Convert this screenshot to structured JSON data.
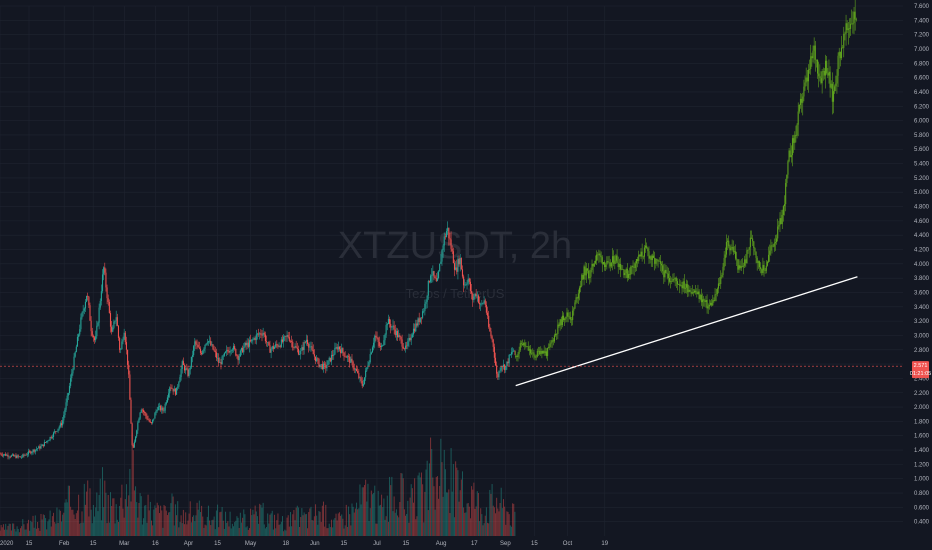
{
  "symbol": "XTZUSDT, 2h",
  "symbol_desc": "Tezos / TetherUS",
  "colors": {
    "background": "#131722",
    "grid": "#1f2430",
    "up": "#26a69a",
    "down": "#ef5350",
    "projection": "#5fa31e",
    "trendline": "#ffffff",
    "current_price": "#ef5350"
  },
  "chart_data": {
    "type": "candlestick",
    "title": "XTZUSDT, 2h",
    "subtitle": "Tezos / TetherUS",
    "y_axis_position": "right",
    "ylim": [
      0.2,
      7.6
    ],
    "y_ticks": [
      "0.400",
      "0.600",
      "0.800",
      "1.000",
      "1.200",
      "1.400",
      "1.600",
      "1.800",
      "2.000",
      "2.200",
      "2.400",
      "2.600",
      "2.800",
      "3.000",
      "3.200",
      "3.400",
      "3.600",
      "3.800",
      "4.000",
      "4.200",
      "4.400",
      "4.600",
      "4.800",
      "5.000",
      "5.200",
      "5.400",
      "5.600",
      "5.800",
      "6.000",
      "6.200",
      "6.400",
      "6.600",
      "6.800",
      "7.000",
      "7.200",
      "7.400",
      "7.600"
    ],
    "x_ticks": [
      "2020",
      "15",
      "Feb",
      "15",
      "Mar",
      "16",
      "Apr",
      "15",
      "May",
      "18",
      "Jun",
      "15",
      "Jul",
      "15",
      "Aug",
      "17",
      "Sep",
      "15",
      "Oct",
      "19"
    ],
    "x_tick_days": [
      0,
      14,
      31,
      45,
      60,
      75,
      91,
      105,
      121,
      138,
      152,
      166,
      182,
      196,
      213,
      229,
      244,
      258,
      274,
      292
    ],
    "current_price": {
      "value": 2.571,
      "label": "2.571",
      "countdown": "01:21:05"
    },
    "price_series": {
      "name": "",
      "days": [
        0,
        5,
        10,
        15,
        20,
        25,
        30,
        33,
        36,
        39,
        42,
        44,
        46,
        48,
        50,
        52,
        54,
        56,
        58,
        60,
        62,
        64,
        66,
        68,
        70,
        73,
        76,
        79,
        82,
        85,
        88,
        91,
        94,
        97,
        100,
        103,
        106,
        109,
        112,
        115,
        118,
        121,
        124,
        127,
        130,
        133,
        136,
        139,
        142,
        145,
        148,
        151,
        154,
        157,
        160,
        163,
        166,
        169,
        172,
        175,
        178,
        181,
        184,
        187,
        190,
        193,
        196,
        199,
        202,
        205,
        208,
        211,
        214,
        216,
        218,
        220,
        222,
        224,
        226,
        228,
        230,
        232,
        234,
        236,
        238,
        240,
        242,
        244,
        246,
        248,
        249
      ],
      "close": [
        1.35,
        1.32,
        1.3,
        1.38,
        1.45,
        1.6,
        1.78,
        2.2,
        2.7,
        3.2,
        3.6,
        3.1,
        2.9,
        3.4,
        3.95,
        3.5,
        3.0,
        3.3,
        2.75,
        3.1,
        2.5,
        1.35,
        1.7,
        2.0,
        1.9,
        1.75,
        2.0,
        1.95,
        2.3,
        2.2,
        2.6,
        2.45,
        2.9,
        2.75,
        2.95,
        2.8,
        2.6,
        2.75,
        2.85,
        2.7,
        2.85,
        2.9,
        3.0,
        3.05,
        2.8,
        2.85,
        2.9,
        3.0,
        2.85,
        2.75,
        2.95,
        2.75,
        2.6,
        2.55,
        2.7,
        2.85,
        2.75,
        2.65,
        2.5,
        2.3,
        2.65,
        3.0,
        2.8,
        3.2,
        3.1,
        2.95,
        2.8,
        3.05,
        3.2,
        3.4,
        3.9,
        3.7,
        4.3,
        4.5,
        4.2,
        3.9,
        4.1,
        3.7,
        3.8,
        3.5,
        3.6,
        3.4,
        3.5,
        3.1,
        2.9,
        2.4,
        2.6,
        2.55,
        2.7,
        2.8,
        2.7
      ]
    },
    "volume_series": {
      "name": "Volume",
      "relative": [
        0.1,
        0.12,
        0.15,
        0.18,
        0.2,
        0.25,
        0.3,
        0.45,
        0.55,
        0.5,
        0.6,
        0.35,
        0.4,
        0.5,
        0.7,
        0.45,
        0.5,
        0.4,
        0.55,
        0.65,
        0.8,
        1.0,
        0.6,
        0.45,
        0.4,
        0.35,
        0.35,
        0.3,
        0.4,
        0.35,
        0.3,
        0.3,
        0.35,
        0.3,
        0.3,
        0.25,
        0.3,
        0.25,
        0.25,
        0.2,
        0.25,
        0.25,
        0.3,
        0.3,
        0.25,
        0.25,
        0.2,
        0.2,
        0.25,
        0.3,
        0.25,
        0.3,
        0.35,
        0.3,
        0.25,
        0.2,
        0.3,
        0.35,
        0.4,
        0.55,
        0.6,
        0.45,
        0.4,
        0.5,
        0.55,
        0.6,
        0.5,
        0.45,
        0.6,
        0.55,
        0.9,
        0.7,
        0.95,
        0.85,
        0.8,
        0.7,
        0.6,
        0.55,
        0.6,
        0.65,
        0.5,
        0.45,
        0.4,
        0.45,
        0.5,
        0.55,
        0.45,
        0.4,
        0.35,
        0.3,
        0.3
      ]
    },
    "projection_series": {
      "name": "",
      "days": [
        249,
        252,
        255,
        258,
        261,
        264,
        267,
        270,
        273,
        276,
        279,
        282,
        285,
        288,
        291,
        294,
        297,
        300,
        303,
        306,
        309,
        312,
        315,
        318,
        321,
        324,
        327,
        330,
        333,
        336,
        339,
        342,
        345,
        348,
        351,
        354,
        357,
        360,
        363,
        366,
        369,
        372,
        375,
        378,
        381,
        384,
        387,
        390,
        393,
        396,
        399,
        402,
        405,
        408,
        411,
        414
      ],
      "close": [
        2.7,
        2.9,
        2.8,
        2.7,
        2.8,
        2.75,
        2.95,
        3.15,
        3.3,
        3.25,
        3.6,
        3.9,
        3.85,
        4.15,
        4.05,
        3.95,
        4.1,
        3.95,
        3.85,
        4.0,
        4.1,
        4.2,
        4.05,
        4.0,
        3.85,
        3.8,
        3.75,
        3.7,
        3.65,
        3.6,
        3.5,
        3.4,
        3.5,
        3.8,
        4.3,
        4.2,
        3.9,
        4.05,
        4.4,
        4.0,
        3.9,
        4.2,
        4.4,
        4.7,
        5.5,
        5.8,
        6.3,
        6.6,
        7.0,
        6.6,
        6.8,
        6.3,
        6.9,
        7.2,
        7.4,
        7.5
      ]
    },
    "trendline": {
      "from": {
        "day": 249,
        "price": 2.3
      },
      "to": {
        "day": 414,
        "price": 3.82
      }
    },
    "xlim_days": [
      0,
      436
    ]
  }
}
